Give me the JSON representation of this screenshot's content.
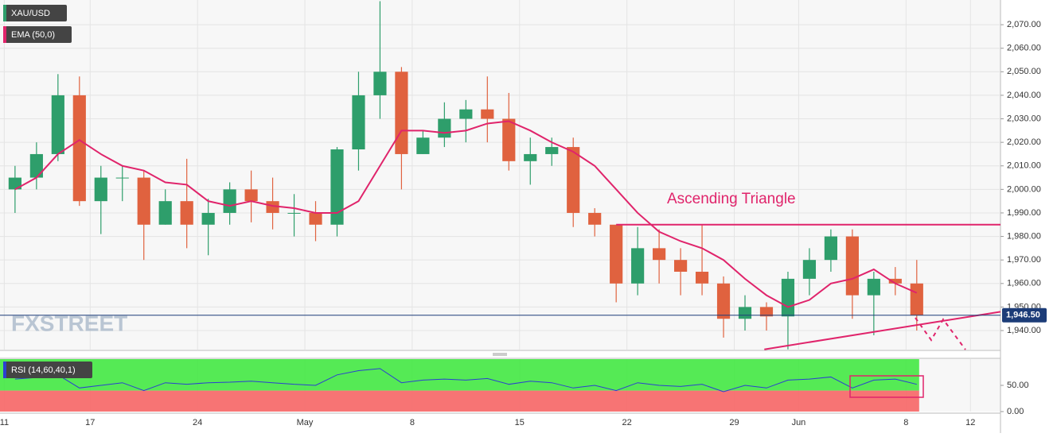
{
  "chart_data": {
    "type": "candlestick",
    "symbol": "XAU/USD",
    "x": [
      0.5,
      1.5,
      2.5,
      3.5,
      4.5,
      5.5,
      6.5,
      7.5,
      8.5,
      9.5,
      10.5,
      11.5,
      12.5,
      13.5,
      14.5,
      15.5,
      16.5,
      17.5,
      18.5,
      19.5,
      20.5,
      21.5,
      22.5,
      23.5,
      24.5,
      25.5,
      26.5,
      27.5,
      28.5,
      29.5,
      30.5,
      31.5,
      32.5,
      33.5,
      34.5,
      35.5,
      36.5,
      37.5,
      38.5,
      39.5,
      40.5,
      41.5,
      42.5
    ],
    "open": [
      2000,
      2005,
      2015,
      2040,
      1995,
      2005,
      2005,
      1985,
      1995,
      1985,
      1990,
      2000,
      1995,
      1990,
      1990,
      1985,
      2017,
      2040,
      2050,
      2015,
      2022,
      2030,
      2034,
      2030,
      2012,
      2015,
      2018,
      1990,
      1985,
      1960,
      1975,
      1970,
      1965,
      1960,
      1945,
      1950,
      1946,
      1962,
      1970,
      1980,
      1955,
      1962,
      1960
    ],
    "high": [
      2010,
      2020,
      2049,
      2048,
      2010,
      2010,
      2008,
      2000,
      2013,
      1996,
      2003,
      2008,
      2005,
      1998,
      1995,
      2018,
      2050,
      2080,
      2052,
      2025,
      2037,
      2038,
      2048,
      2041,
      2022,
      2022,
      2022,
      1992,
      1985,
      1984,
      1983,
      1975,
      1985,
      1963,
      1955,
      1952,
      1965,
      1975,
      1983,
      1983,
      1965,
      1967,
      1970
    ],
    "low": [
      1990,
      2000,
      2012,
      1993,
      1981,
      1995,
      1970,
      1985,
      1975,
      1972,
      1985,
      1986,
      1983,
      1980,
      1978,
      1980,
      2008,
      2030,
      2000,
      2015,
      2018,
      2020,
      2020,
      2008,
      2002,
      2010,
      1984,
      1980,
      1952,
      1955,
      1960,
      1955,
      1955,
      1937,
      1940,
      1940,
      1932,
      1955,
      1965,
      1945,
      1938,
      1955,
      1940
    ],
    "close": [
      2005,
      2015,
      2040,
      1995,
      2005,
      2005,
      1985,
      1995,
      1985,
      1990,
      2000,
      1995,
      1990,
      1990,
      1985,
      2017,
      2040,
      2050,
      2015,
      2022,
      2030,
      2034,
      2030,
      2012,
      2015,
      2018,
      1990,
      1985,
      1960,
      1975,
      1970,
      1965,
      1960,
      1945,
      1950,
      1946,
      1962,
      1970,
      1980,
      1955,
      1962,
      1960,
      1946.5
    ],
    "up_color": "#2e9e6b",
    "down_color": "#e0623f",
    "ema": {
      "name": "EMA (50,0)",
      "color": "#e0246b",
      "values": [
        2000,
        2005,
        2015,
        2021,
        2015,
        2010,
        2008,
        2003,
        2002,
        1995,
        1993,
        1995,
        1993,
        1992,
        1990,
        1990,
        1995,
        2010,
        2025,
        2025,
        2024,
        2025,
        2028,
        2029,
        2025,
        2020,
        2016,
        2010,
        2000,
        1990,
        1982,
        1978,
        1975,
        1970,
        1962,
        1955,
        1950,
        1953,
        1960,
        1962,
        1966,
        1960,
        1956
      ]
    },
    "xlim": [
      -0.2,
      46.4
    ],
    "xticks": [
      {
        "value": 0,
        "label": "11"
      },
      {
        "value": 4,
        "label": "17"
      },
      {
        "value": 9,
        "label": "24"
      },
      {
        "value": 14,
        "label": "May"
      },
      {
        "value": 19,
        "label": "8"
      },
      {
        "value": 24,
        "label": "15"
      },
      {
        "value": 29,
        "label": "22"
      },
      {
        "value": 34,
        "label": "29"
      },
      {
        "value": 37,
        "label": "Jun"
      },
      {
        "value": 42,
        "label": "8"
      },
      {
        "value": 45,
        "label": "12"
      }
    ],
    "ylim": [
      1931.9,
      2080.5
    ],
    "yticks": [
      {
        "value": 1940,
        "label": "1,940.00"
      },
      {
        "value": 1950,
        "label": "1,950.00"
      },
      {
        "value": 1960,
        "label": "1,960.00"
      },
      {
        "value": 1970,
        "label": "1,970.00"
      },
      {
        "value": 1980,
        "label": "1,980.00"
      },
      {
        "value": 1990,
        "label": "1,990.00"
      },
      {
        "value": 2000,
        "label": "2,000.00"
      },
      {
        "value": 2010,
        "label": "2,010.00"
      },
      {
        "value": 2020,
        "label": "2,020.00"
      },
      {
        "value": 2030,
        "label": "2,030.00"
      },
      {
        "value": 2040,
        "label": "2,040.00"
      },
      {
        "value": 2050,
        "label": "2,050.00"
      },
      {
        "value": 2060,
        "label": "2,060.00"
      },
      {
        "value": 2070,
        "label": "2,070.00"
      }
    ],
    "last_price": {
      "value": 1946.5,
      "label": "1,946.50"
    },
    "annotation": "Ascending Triangle",
    "resistance": {
      "x": [
        28.5,
        46.4
      ],
      "y": [
        1985,
        1985
      ]
    },
    "support": {
      "x": [
        35.4,
        46.4
      ],
      "y": [
        1932,
        1948
      ]
    },
    "watermark": "FXSTREET",
    "rsi": {
      "name": "RSI (14,60,40,1)",
      "color": "#2b3fd1",
      "threshold": 40,
      "values": [
        62,
        65,
        70,
        45,
        50,
        55,
        40,
        55,
        52,
        55,
        56,
        58,
        55,
        52,
        50,
        70,
        78,
        82,
        55,
        60,
        62,
        60,
        63,
        52,
        58,
        55,
        45,
        50,
        40,
        55,
        50,
        48,
        52,
        38,
        50,
        45,
        60,
        62,
        66,
        45,
        60,
        62,
        52
      ],
      "ylim": [
        0,
        100
      ],
      "yticks": [
        {
          "value": 0,
          "label": "0.00"
        },
        {
          "value": 50,
          "label": "50.00"
        }
      ]
    }
  }
}
